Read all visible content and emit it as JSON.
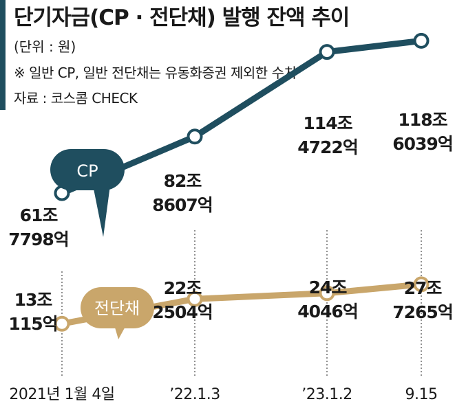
{
  "header": {
    "title": "단기자금(CP · 전단채) 발행 잔액 추이",
    "unit": "(단위 : 원)",
    "note": "※ 일반 CP, 일반 전단채는 유동화증권 제외한 수치",
    "source": "자료 : 코스콤 CHECK"
  },
  "colors": {
    "cp": "#1f4e5f",
    "esb": "#c9a66b",
    "accent": "#1f4e5f",
    "guide": "#555555"
  },
  "chart_data": {
    "type": "line",
    "title": "단기자금(CP · 전단채) 발행 잔액 추이",
    "categories": [
      "2021년 1월 4일",
      "’22.1.3",
      "’23.1.2",
      "9.15"
    ],
    "series": [
      {
        "name": "CP",
        "values": [
          61.7798,
          82.8607,
          114.4722,
          118.6039
        ],
        "labels": [
          [
            "61조",
            "7798억"
          ],
          [
            "82조",
            "8607억"
          ],
          [
            "114조",
            "4722억"
          ],
          [
            "118조",
            "6039억"
          ]
        ]
      },
      {
        "name": "전단채",
        "values": [
          13.0115,
          22.2504,
          24.4046,
          27.7265
        ],
        "labels": [
          [
            "13조",
            "115억"
          ],
          [
            "22조",
            "2504억"
          ],
          [
            "24조",
            "4046억"
          ],
          [
            "27조",
            "7265억"
          ]
        ]
      }
    ],
    "grid": false,
    "legend": "inline-callouts"
  }
}
